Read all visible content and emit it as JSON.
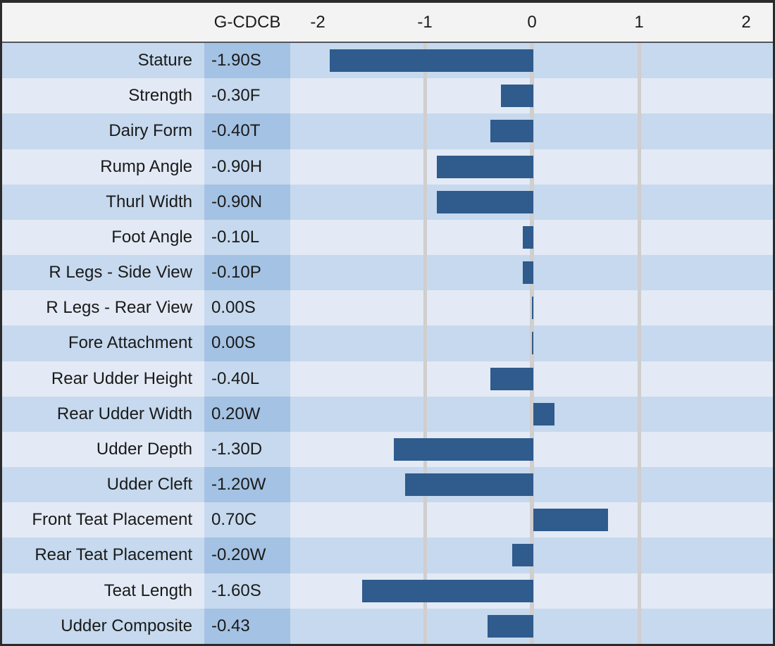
{
  "header": {
    "series_label": "G-CDCB",
    "axis_ticks": [
      "-2",
      "-1",
      "0",
      "1",
      "2"
    ]
  },
  "rows": [
    {
      "label": "Stature",
      "value_label": "-1.90S",
      "value": -1.9
    },
    {
      "label": "Strength",
      "value_label": "-0.30F",
      "value": -0.3
    },
    {
      "label": "Dairy Form",
      "value_label": "-0.40T",
      "value": -0.4
    },
    {
      "label": "Rump Angle",
      "value_label": "-0.90H",
      "value": -0.9
    },
    {
      "label": "Thurl Width",
      "value_label": "-0.90N",
      "value": -0.9
    },
    {
      "label": "Foot Angle",
      "value_label": "-0.10L",
      "value": -0.1
    },
    {
      "label": "R Legs - Side View",
      "value_label": "-0.10P",
      "value": -0.1
    },
    {
      "label": "R Legs - Rear View",
      "value_label": "0.00S",
      "value": 0.0
    },
    {
      "label": "Fore Attachment",
      "value_label": "0.00S",
      "value": 0.0
    },
    {
      "label": "Rear Udder Height",
      "value_label": "-0.40L",
      "value": -0.4
    },
    {
      "label": "Rear Udder Width",
      "value_label": "0.20W",
      "value": 0.2
    },
    {
      "label": "Udder Depth",
      "value_label": "-1.30D",
      "value": -1.3
    },
    {
      "label": "Udder Cleft",
      "value_label": "-1.20W",
      "value": -1.2
    },
    {
      "label": "Front Teat Placement",
      "value_label": "0.70C",
      "value": 0.7
    },
    {
      "label": "Rear Teat Placement",
      "value_label": "-0.20W",
      "value": -0.2
    },
    {
      "label": "Teat Length",
      "value_label": "-1.60S",
      "value": -1.6
    },
    {
      "label": "Udder Composite",
      "value_label": "-0.43",
      "value": -0.43
    }
  ],
  "chart_data": {
    "type": "bar",
    "orientation": "horizontal",
    "title": "",
    "series_label": "G-CDCB",
    "categories": [
      "Stature",
      "Strength",
      "Dairy Form",
      "Rump Angle",
      "Thurl Width",
      "Foot Angle",
      "R Legs - Side View",
      "R Legs - Rear View",
      "Fore Attachment",
      "Rear Udder Height",
      "Rear Udder Width",
      "Udder Depth",
      "Udder Cleft",
      "Front Teat Placement",
      "Rear Teat Placement",
      "Teat Length",
      "Udder Composite"
    ],
    "values": [
      -1.9,
      -0.3,
      -0.4,
      -0.9,
      -0.9,
      -0.1,
      -0.1,
      0.0,
      0.0,
      -0.4,
      0.2,
      -1.3,
      -1.2,
      0.7,
      -0.2,
      -1.6,
      -0.43
    ],
    "value_labels": [
      "-1.90S",
      "-0.30F",
      "-0.40T",
      "-0.90H",
      "-0.90N",
      "-0.10L",
      "-0.10P",
      "0.00S",
      "0.00S",
      "-0.40L",
      "0.20W",
      "-1.30D",
      "-1.20W",
      "0.70C",
      "-0.20W",
      "-1.60S",
      "-0.43"
    ],
    "xlim": [
      -2.27,
      2.27
    ],
    "xticks": [
      -2,
      -1,
      0,
      1,
      2
    ],
    "gridlines_at": [
      -1,
      0,
      1
    ],
    "legend": "none"
  },
  "colors": {
    "bar": "#2f5b8d",
    "header_bg": "#f3f3f3",
    "row_light_bg": "#e3eaf5",
    "row_light_value_bg": "#c6d9ee",
    "row_dark_bg": "#c6d9ee",
    "row_dark_value_bg": "#a4c2e3",
    "gridline": "#d0cece",
    "border": "#2b2b2b",
    "text": "#1a1a1a"
  }
}
